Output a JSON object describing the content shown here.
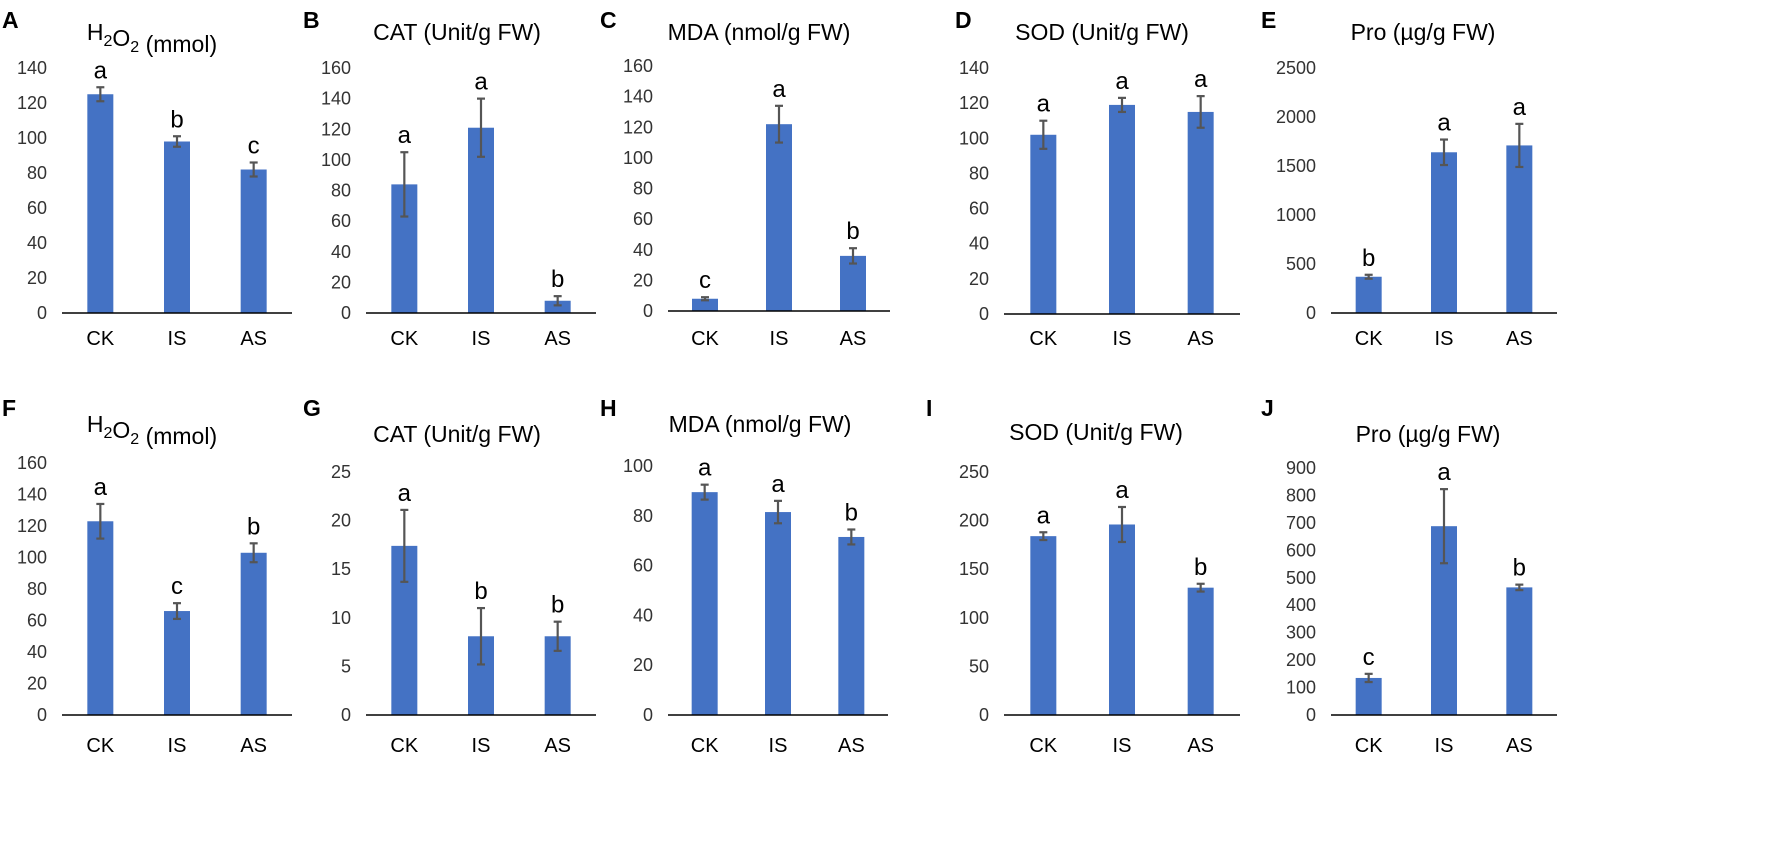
{
  "figure": {
    "bar_color": "#4472c4",
    "error_color": "#555555",
    "axis_color": "#000000"
  },
  "chart_data": [
    {
      "panel": "A",
      "type": "bar",
      "title": "H₂O₂ (mmol)",
      "categories": [
        "CK",
        "IS",
        "AS"
      ],
      "values": [
        125,
        98,
        82
      ],
      "errors": [
        4,
        3,
        4
      ],
      "letters": [
        "a",
        "b",
        "c"
      ],
      "ylim": [
        0,
        140
      ],
      "ticks": [
        0,
        20,
        40,
        60,
        80,
        100,
        120,
        140
      ]
    },
    {
      "panel": "B",
      "type": "bar",
      "title": "CAT (Unit/g FW)",
      "categories": [
        "CK",
        "IS",
        "AS"
      ],
      "values": [
        84,
        121,
        8
      ],
      "errors": [
        21,
        19,
        3
      ],
      "letters": [
        "a",
        "a",
        "b"
      ],
      "ylim": [
        0,
        160
      ],
      "ticks": [
        0,
        20,
        40,
        60,
        80,
        100,
        120,
        140,
        160
      ]
    },
    {
      "panel": "C",
      "type": "bar",
      "title": "MDA (nmol/g FW)",
      "categories": [
        "CK",
        "IS",
        "AS"
      ],
      "values": [
        8,
        122,
        36
      ],
      "errors": [
        1,
        12,
        5
      ],
      "letters": [
        "c",
        "a",
        "b"
      ],
      "ylim": [
        0,
        160
      ],
      "ticks": [
        0,
        20,
        40,
        60,
        80,
        100,
        120,
        140,
        160
      ]
    },
    {
      "panel": "D",
      "type": "bar",
      "title": "SOD (Unit/g FW)",
      "categories": [
        "CK",
        "IS",
        "AS"
      ],
      "values": [
        102,
        119,
        115
      ],
      "errors": [
        8,
        4,
        9
      ],
      "letters": [
        "a",
        "a",
        "a"
      ],
      "ylim": [
        0,
        140
      ],
      "ticks": [
        0,
        20,
        40,
        60,
        80,
        100,
        120,
        140
      ]
    },
    {
      "panel": "E",
      "type": "bar",
      "title": "Pro (µg/g FW)",
      "categories": [
        "CK",
        "IS",
        "AS"
      ],
      "values": [
        370,
        1640,
        1710
      ],
      "errors": [
        20,
        130,
        220
      ],
      "letters": [
        "b",
        "a",
        "a"
      ],
      "ylim": [
        0,
        2500
      ],
      "ticks": [
        0,
        500,
        1000,
        1500,
        2000,
        2500
      ]
    },
    {
      "panel": "F",
      "type": "bar",
      "title": "H₂O₂ (mmol)",
      "categories": [
        "CK",
        "IS",
        "AS"
      ],
      "values": [
        123,
        66,
        103
      ],
      "errors": [
        11,
        5,
        6
      ],
      "letters": [
        "a",
        "c",
        "b"
      ],
      "ylim": [
        0,
        160
      ],
      "ticks": [
        0,
        20,
        40,
        60,
        80,
        100,
        120,
        140,
        160
      ]
    },
    {
      "panel": "G",
      "type": "bar",
      "title": "CAT (Unit/g FW)",
      "categories": [
        "CK",
        "IS",
        "AS"
      ],
      "values": [
        17.4,
        8.1,
        8.1
      ],
      "errors": [
        3.7,
        2.9,
        1.5
      ],
      "letters": [
        "a",
        "b",
        "b"
      ],
      "ylim": [
        0,
        25
      ],
      "ticks": [
        0,
        5,
        10,
        15,
        20,
        25
      ]
    },
    {
      "panel": "H",
      "type": "bar",
      "title": "MDA (nmol/g FW)",
      "categories": [
        "CK",
        "IS",
        "AS"
      ],
      "values": [
        89.5,
        81.5,
        71.5
      ],
      "errors": [
        3,
        4.5,
        3
      ],
      "letters": [
        "a",
        "a",
        "b"
      ],
      "ylim": [
        0,
        100
      ],
      "ticks": [
        0,
        20,
        40,
        60,
        80,
        100
      ]
    },
    {
      "panel": "I",
      "type": "bar",
      "title": "SOD (Unit/g FW)",
      "categories": [
        "CK",
        "IS",
        "AS"
      ],
      "values": [
        184,
        196,
        131
      ],
      "errors": [
        4,
        18,
        4
      ],
      "letters": [
        "a",
        "a",
        "b"
      ],
      "ylim": [
        0,
        250
      ],
      "ticks": [
        0,
        50,
        100,
        150,
        200,
        250
      ]
    },
    {
      "panel": "J",
      "type": "bar",
      "title": "Pro (µg/g FW)",
      "categories": [
        "CK",
        "IS",
        "AS"
      ],
      "values": [
        135,
        688,
        465
      ],
      "errors": [
        15,
        135,
        10
      ],
      "letters": [
        "c",
        "a",
        "b"
      ],
      "ylim": [
        0,
        900
      ],
      "ticks": [
        0,
        100,
        200,
        300,
        400,
        500,
        600,
        700,
        800,
        900
      ]
    }
  ]
}
